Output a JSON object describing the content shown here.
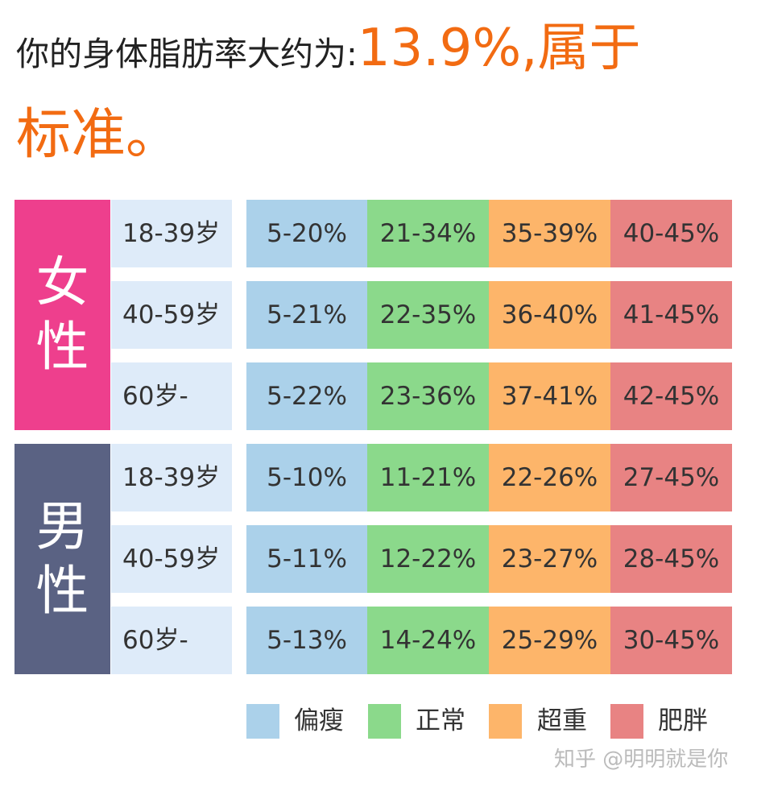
{
  "headline": {
    "lead": "你的身体脂肪率大约为:",
    "value": "13.9%,属于",
    "category": "标准。"
  },
  "colors": {
    "female": "#ee3f8d",
    "male": "#5a6283",
    "thin": "#abd1ea",
    "normal": "#8bd98b",
    "overweight": "#fdb56a",
    "obese": "#e88383",
    "accent": "#f26b12"
  },
  "groups": [
    {
      "gender": [
        "女",
        "性"
      ],
      "rows": [
        {
          "age": "18-39岁",
          "ranges": [
            "5-20%",
            "21-34%",
            "35-39%",
            "40-45%"
          ]
        },
        {
          "age": "40-59岁",
          "ranges": [
            "5-21%",
            "22-35%",
            "36-40%",
            "41-45%"
          ]
        },
        {
          "age": "60岁-",
          "ranges": [
            "5-22%",
            "23-36%",
            "37-41%",
            "42-45%"
          ]
        }
      ]
    },
    {
      "gender": [
        "男",
        "性"
      ],
      "rows": [
        {
          "age": "18-39岁",
          "ranges": [
            "5-10%",
            "11-21%",
            "22-26%",
            "27-45%"
          ]
        },
        {
          "age": "40-59岁",
          "ranges": [
            "5-11%",
            "12-22%",
            "23-27%",
            "28-45%"
          ]
        },
        {
          "age": "60岁-",
          "ranges": [
            "5-13%",
            "14-24%",
            "25-29%",
            "30-45%"
          ]
        }
      ]
    }
  ],
  "legend": [
    "偏瘦",
    "正常",
    "超重",
    "肥胖"
  ],
  "watermark": "知乎 @明明就是你"
}
